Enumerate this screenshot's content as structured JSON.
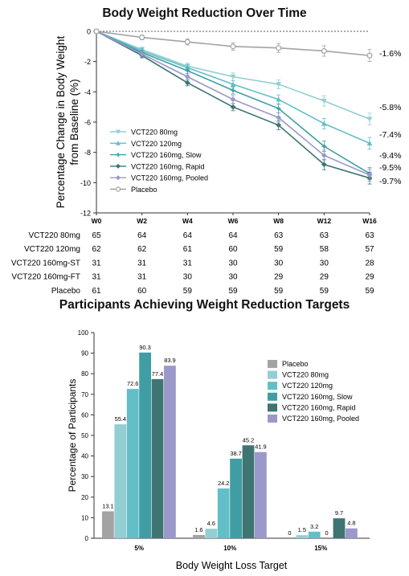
{
  "colors": {
    "placebo": "#a3a3a3",
    "vct80": "#93ced2",
    "vct120": "#63bfc7",
    "vct160_slow": "#3f9ea4",
    "vct160_rapid": "#3e7573",
    "vct160_pooled": "#9b98ca"
  },
  "chart_data": [
    {
      "type": "line",
      "title": "Body Weight Reduction Over Time",
      "ylabel": "Percentage Change in Body Weight from Baseline (%)",
      "xlabel": "",
      "categories": [
        "W0",
        "W2",
        "W4",
        "W6",
        "W8",
        "W12",
        "W16"
      ],
      "ylim": [
        -12,
        0
      ],
      "yticks": [
        0,
        -2,
        -4,
        -6,
        -8,
        -10,
        -12
      ],
      "legend_position": "lower-left",
      "series": [
        {
          "name": "VCT220 80mg",
          "key": "vct80",
          "marker": "triangle-down",
          "values": [
            0,
            -1.2,
            -2.3,
            -3.0,
            -3.5,
            -4.6,
            -5.8
          ],
          "end_label": "-5.8%"
        },
        {
          "name": "VCT220 120mg",
          "key": "vct120",
          "marker": "triangle-up",
          "values": [
            0,
            -1.3,
            -2.4,
            -3.5,
            -4.5,
            -6.1,
            -7.4
          ],
          "end_label": "-7.4%"
        },
        {
          "name": "VCT220 160mg, Slow",
          "key": "vct160_slow",
          "marker": "star",
          "values": [
            0,
            -1.4,
            -2.6,
            -3.9,
            -5.1,
            -7.6,
            -9.4
          ],
          "end_label": "-9.4%"
        },
        {
          "name": "VCT220 160mg, Rapid",
          "key": "vct160_rapid",
          "marker": "diamond",
          "values": [
            0,
            -1.6,
            -3.4,
            -5.0,
            -6.2,
            -8.8,
            -9.7
          ],
          "end_label": "-9.7%"
        },
        {
          "name": "VCT220 160mg, Pooled",
          "key": "vct160_pooled",
          "marker": "diamond",
          "values": [
            0,
            -1.5,
            -3.0,
            -4.5,
            -5.7,
            -8.2,
            -9.5
          ],
          "end_label": "-9.5%"
        },
        {
          "name": "Placebo",
          "key": "placebo",
          "marker": "circle-open",
          "values": [
            0,
            -0.4,
            -0.7,
            -1.0,
            -1.1,
            -1.3,
            -1.6
          ],
          "end_label": "-1.6%"
        }
      ]
    },
    {
      "type": "table",
      "columns": [
        "W0",
        "W2",
        "W4",
        "W6",
        "W8",
        "W12",
        "W16"
      ],
      "rows": [
        {
          "label": "VCT220 80mg",
          "values": [
            "65",
            "64",
            "64",
            "64",
            "63",
            "63",
            "63"
          ]
        },
        {
          "label": "VCT220 120mg",
          "values": [
            "62",
            "62",
            "61",
            "60",
            "59",
            "58",
            "57"
          ]
        },
        {
          "label": "VCT220 160mg-ST",
          "values": [
            "31",
            "31",
            "31",
            "30",
            "30",
            "30",
            "28"
          ]
        },
        {
          "label": "VCT220 160mg-FT",
          "values": [
            "31",
            "31",
            "30",
            "30",
            "29",
            "29",
            "29"
          ]
        },
        {
          "label": "Placebo",
          "values": [
            "61",
            "60",
            "59",
            "59",
            "59",
            "59",
            "59"
          ]
        }
      ]
    },
    {
      "type": "bar",
      "title": "Participants Achieving Weight Reduction Targets",
      "xlabel": "Body Weight Loss Target",
      "ylabel": "Percentage of Participants",
      "categories": [
        "5%",
        "10%",
        "15%"
      ],
      "ylim": [
        0,
        100
      ],
      "yticks": [
        0,
        10,
        20,
        30,
        40,
        50,
        60,
        70,
        80,
        90,
        100
      ],
      "legend_position": "top-right",
      "series": [
        {
          "name": "Placebo",
          "key": "placebo",
          "values": [
            13.1,
            1.6,
            0
          ],
          "labels": [
            "13.1",
            "1.6",
            "0"
          ]
        },
        {
          "name": "VCT220 80mg",
          "key": "vct80",
          "values": [
            55.4,
            4.6,
            1.5
          ],
          "labels": [
            "55.4",
            "4.6",
            "1.5"
          ]
        },
        {
          "name": "VCT220 120mg",
          "key": "vct120",
          "values": [
            72.6,
            24.2,
            3.2
          ],
          "labels": [
            "72.6",
            "24.2",
            "3.2"
          ]
        },
        {
          "name": "VCT220 160mg, Slow",
          "key": "vct160_slow",
          "values": [
            90.3,
            38.7,
            0
          ],
          "labels": [
            "90.3",
            "38.7",
            "0"
          ]
        },
        {
          "name": "VCT220 160mg, Rapid",
          "key": "vct160_rapid",
          "values": [
            77.4,
            45.2,
            9.7
          ],
          "labels": [
            "77.4",
            "45.2",
            "9.7"
          ]
        },
        {
          "name": "VCT220 160mg, Pooled",
          "key": "vct160_pooled",
          "values": [
            83.9,
            41.9,
            4.8
          ],
          "labels": [
            "83.9",
            "41.9",
            "4.8"
          ]
        }
      ]
    }
  ]
}
